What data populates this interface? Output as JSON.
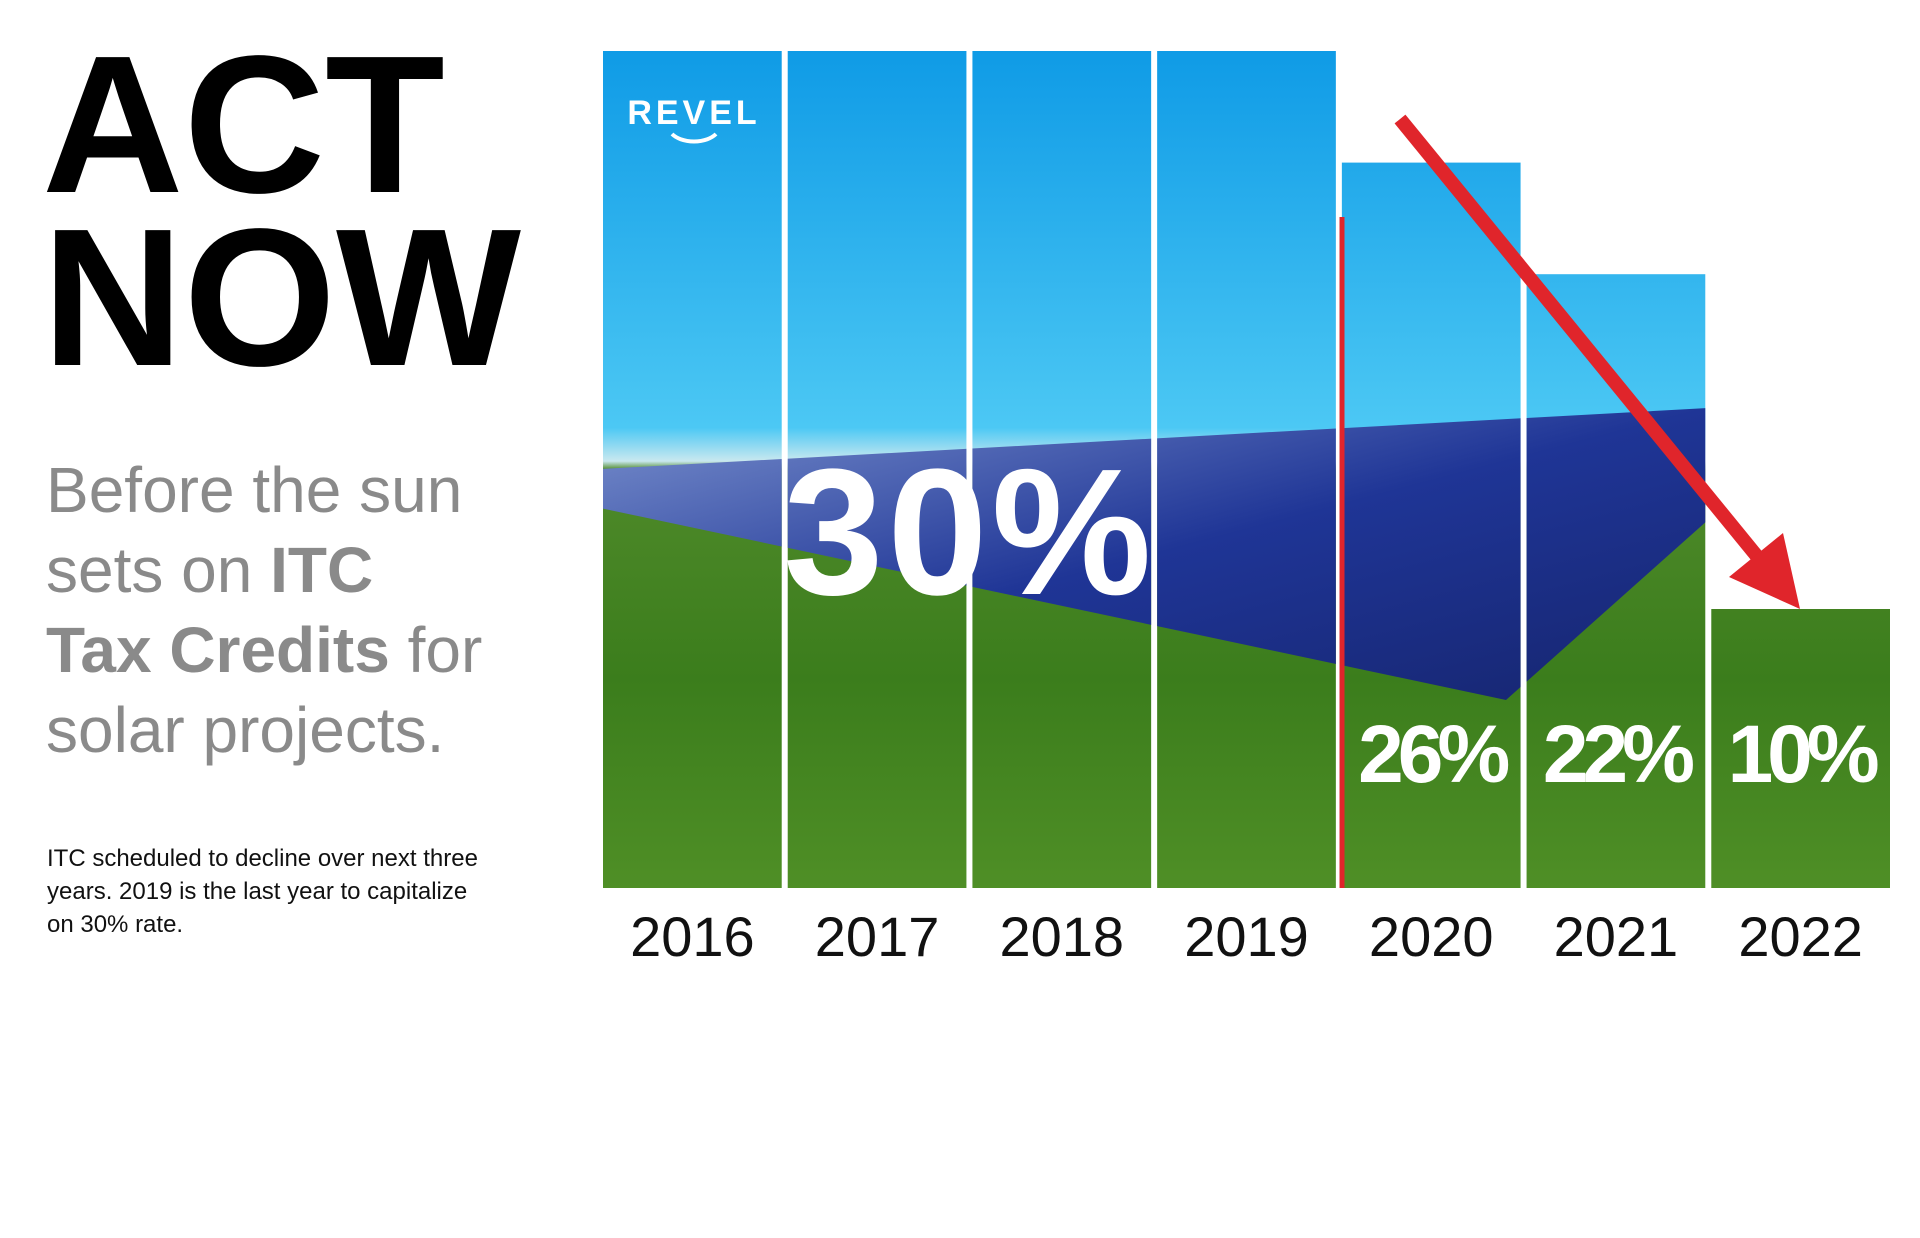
{
  "header": {
    "title_lines": [
      "ACT",
      "NOW"
    ],
    "subtitle_lines": [
      [
        {
          "text": "Before the sun",
          "bold": false
        }
      ],
      [
        {
          "text": "sets on ",
          "bold": false
        },
        {
          "text": "ITC",
          "bold": true
        }
      ],
      [
        {
          "text": "Tax Credits",
          "bold": true
        },
        {
          "text": " for",
          "bold": false
        }
      ],
      [
        {
          "text": "solar projects.",
          "bold": false
        }
      ]
    ],
    "note_lines": [
      "ITC scheduled to decline over next three",
      "years. 2019 is the last year to capitalize",
      "on 30% rate."
    ]
  },
  "logo": "REVEL",
  "chart_data": {
    "type": "bar",
    "categories": [
      "2016",
      "2017",
      "2018",
      "2019",
      "2020",
      "2021",
      "2022"
    ],
    "values": [
      30,
      30,
      30,
      30,
      26,
      22,
      10
    ],
    "value_labels": [
      "30%",
      null,
      null,
      null,
      "26%",
      "22%",
      "10%"
    ],
    "ylim": [
      0,
      30
    ]
  }
}
